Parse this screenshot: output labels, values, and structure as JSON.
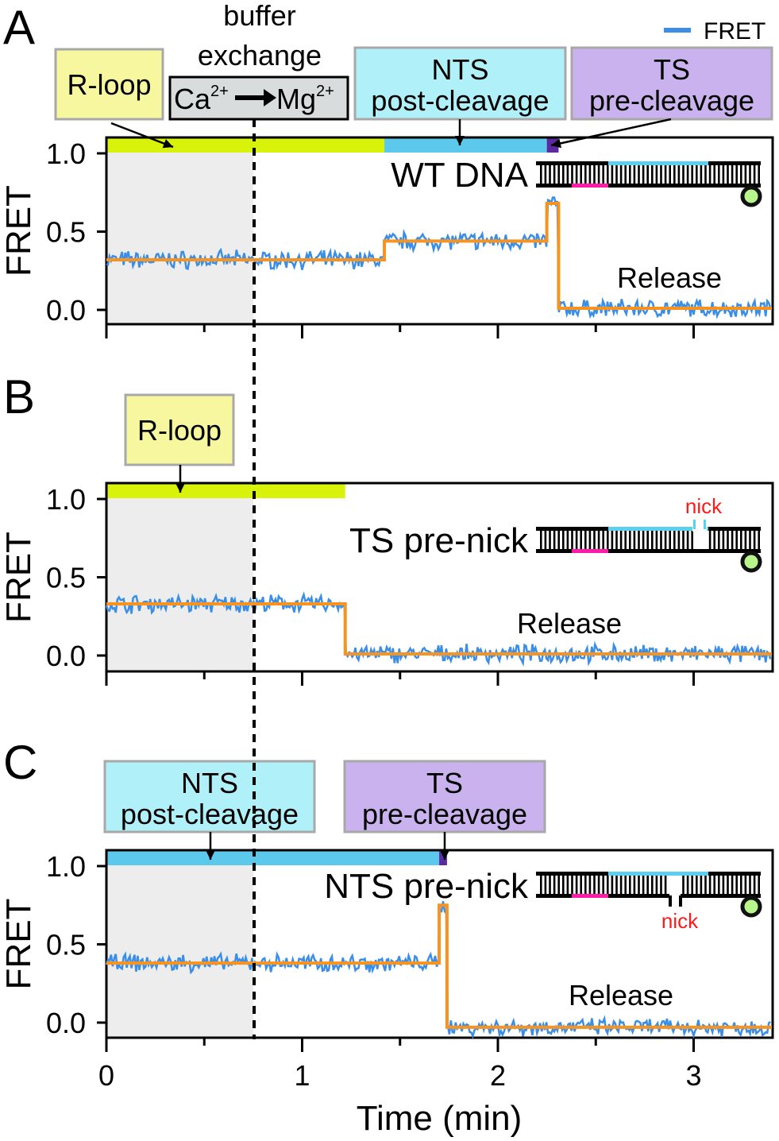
{
  "legend": {
    "label": "FRET",
    "color": "#3a8ee6"
  },
  "colors": {
    "trace": "#3a8ee6",
    "fit": "#f7931e",
    "r_loop": "#d8f20a",
    "nts_post": "#5bc8ec",
    "ts_pre": "#5b2aa0",
    "shade": "#ededed",
    "dna_pink": "#ff1aa8",
    "dna_blue": "#5bd0ee",
    "nick": "#ff1a1a",
    "box_yellow": "#f7f7a0",
    "box_cyan": "#b0f0f8",
    "box_purple": "#c9b2ee",
    "box_gray": "#d8dcdc"
  },
  "buffer_exchange": {
    "title_line1": "buffer",
    "title_line2": "exchange",
    "from": "Ca",
    "from_sup": "2+",
    "to": "Mg",
    "to_sup": "2+",
    "time_min": 0.75
  },
  "chart_data": [
    {
      "panel": "A",
      "type": "line",
      "condition": "WT DNA",
      "annotation": "Release",
      "xlim": [
        0,
        3.4
      ],
      "ylim": [
        -0.08,
        1.1
      ],
      "ylabel": "FRET",
      "yticks": [
        "0.0",
        "0.5",
        "1.0"
      ],
      "states": [
        {
          "name": "R-loop",
          "from": 0,
          "to": 1.42,
          "color": "#d8f20a"
        },
        {
          "name": "NTS post-cleavage",
          "from": 1.42,
          "to": 2.25,
          "color": "#5bc8ec"
        },
        {
          "name": "TS pre-cleavage",
          "from": 2.25,
          "to": 2.31,
          "color": "#5b2aa0"
        }
      ],
      "fit_steps": [
        {
          "from": 0,
          "to": 1.42,
          "fret": 0.32
        },
        {
          "from": 1.42,
          "to": 2.25,
          "fret": 0.44
        },
        {
          "from": 2.25,
          "to": 2.31,
          "fret": 0.68
        },
        {
          "from": 2.31,
          "to": 3.4,
          "fret": 0.01
        }
      ],
      "labels": [
        {
          "line1": "R-loop",
          "line2": ""
        },
        {
          "line1": "NTS",
          "line2": "post-cleavage"
        },
        {
          "line1": "TS",
          "line2": "pre-cleavage"
        }
      ],
      "nick": ""
    },
    {
      "panel": "B",
      "type": "line",
      "condition": "TS pre-nick",
      "annotation": "Release",
      "xlim": [
        0,
        3.4
      ],
      "ylim": [
        -0.08,
        1.1
      ],
      "ylabel": "FRET",
      "yticks": [
        "0.0",
        "0.5",
        "1.0"
      ],
      "states": [
        {
          "name": "R-loop",
          "from": 0,
          "to": 1.22,
          "color": "#d8f20a"
        }
      ],
      "fit_steps": [
        {
          "from": 0,
          "to": 1.22,
          "fret": 0.33
        },
        {
          "from": 1.22,
          "to": 3.4,
          "fret": 0.01
        }
      ],
      "labels": [
        {
          "line1": "R-loop",
          "line2": ""
        }
      ],
      "nick": "nick"
    },
    {
      "panel": "C",
      "type": "line",
      "condition": "NTS pre-nick",
      "annotation": "Release",
      "xlim": [
        0,
        3.4
      ],
      "ylim": [
        -0.08,
        1.1
      ],
      "ylabel": "FRET",
      "yticks": [
        "0.0",
        "0.5",
        "1.0"
      ],
      "xlabel": "Time (min)",
      "xticks": [
        "0",
        "1",
        "2",
        "3"
      ],
      "states": [
        {
          "name": "NTS post-cleavage",
          "from": 0,
          "to": 1.7,
          "color": "#5bc8ec"
        },
        {
          "name": "TS pre-cleavage",
          "from": 1.7,
          "to": 1.74,
          "color": "#5b2aa0"
        }
      ],
      "fit_steps": [
        {
          "from": 0,
          "to": 1.7,
          "fret": 0.38
        },
        {
          "from": 1.7,
          "to": 1.74,
          "fret": 0.75
        },
        {
          "from": 1.74,
          "to": 3.4,
          "fret": -0.03
        }
      ],
      "labels": [
        {
          "line1": "NTS",
          "line2": "post-cleavage"
        },
        {
          "line1": "TS",
          "line2": "pre-cleavage"
        }
      ],
      "nick": "nick"
    }
  ]
}
